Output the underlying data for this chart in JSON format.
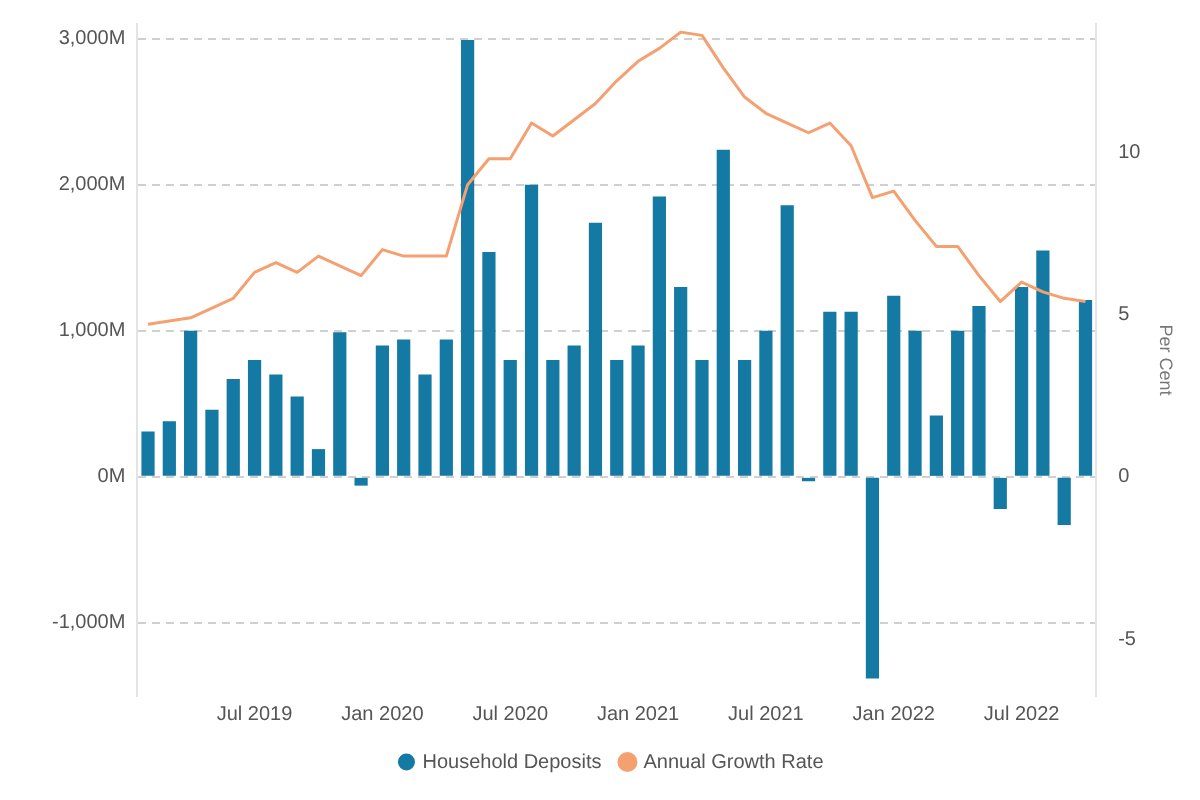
{
  "chart_data": {
    "type": "bar",
    "y2label": "Per Cent",
    "categories": [
      null,
      null,
      null,
      null,
      null,
      "Jul 2019",
      null,
      null,
      null,
      null,
      null,
      "Jan 2020",
      null,
      null,
      null,
      null,
      null,
      "Jul 2020",
      null,
      null,
      null,
      null,
      null,
      "Jan 2021",
      null,
      null,
      null,
      null,
      null,
      "Jul 2021",
      null,
      null,
      null,
      null,
      null,
      "Jan 2022",
      null,
      null,
      null,
      null,
      null,
      "Jul 2022",
      null,
      null,
      null
    ],
    "series": [
      {
        "name": "Household Deposits",
        "color": "#1479a3",
        "values": [
          310,
          380,
          1000,
          460,
          670,
          800,
          700,
          550,
          190,
          990,
          -60,
          900,
          940,
          700,
          940,
          2990,
          1540,
          800,
          2000,
          800,
          900,
          1740,
          800,
          900,
          1920,
          1300,
          800,
          2240,
          800,
          1000,
          1860,
          -30,
          1130,
          1130,
          -1380,
          1240,
          1000,
          420,
          1000,
          1170,
          -220,
          1300,
          1550,
          -330,
          1210
        ]
      },
      {
        "name": "Annual Growth Rate",
        "type": "line",
        "axis": "y2",
        "color": "#f4a070",
        "marker": "none",
        "values": [
          4.7,
          4.8,
          4.9,
          5.2,
          5.5,
          6.3,
          6.6,
          6.3,
          6.8,
          6.5,
          6.2,
          7.0,
          6.8,
          6.8,
          6.8,
          9.0,
          9.8,
          9.8,
          10.9,
          10.5,
          11.0,
          11.5,
          12.2,
          12.8,
          13.2,
          13.7,
          13.6,
          12.6,
          11.7,
          11.2,
          10.9,
          10.6,
          10.9,
          10.2,
          8.6,
          8.8,
          7.9,
          7.1,
          7.1,
          6.2,
          5.4,
          6.0,
          5.7,
          5.5,
          5.4
        ]
      }
    ],
    "ylim": [
      -1500,
      3100
    ],
    "yticks": [
      {
        "value": -1000,
        "label": "-1,000M"
      },
      {
        "value": 0,
        "label": "0M"
      },
      {
        "value": 1000,
        "label": "1,000M"
      },
      {
        "value": 2000,
        "label": "2,000M"
      },
      {
        "value": 3000,
        "label": "3,000M"
      }
    ],
    "y2lim": [
      -6.75,
      13.95
    ],
    "y2ticks": [
      -5,
      0,
      5,
      10
    ],
    "grid": "y",
    "legend": "bottom"
  }
}
